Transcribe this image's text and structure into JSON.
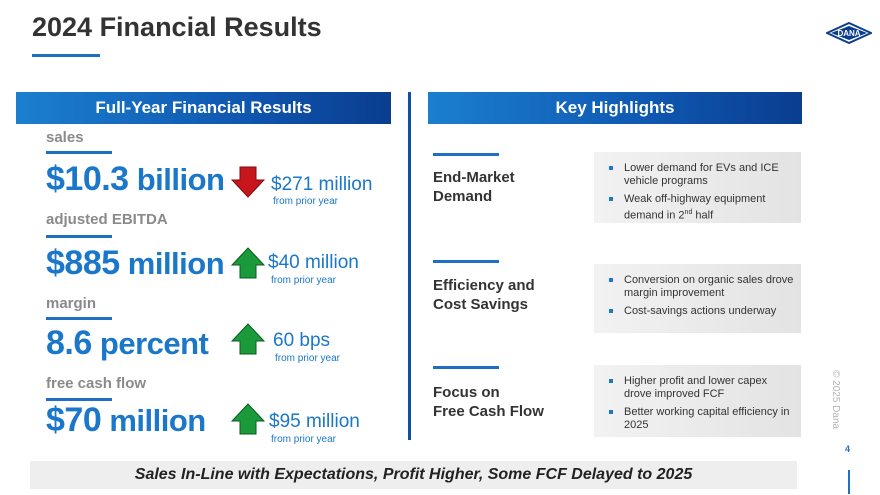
{
  "title": "2024 Financial Results",
  "logo_text": "DANA",
  "left_header": "Full-Year Financial Results",
  "right_header": "Key Highlights",
  "metrics": [
    {
      "label": "sales",
      "value_num": "$10.3",
      "value_unit": "billion",
      "change": "$271 million",
      "change_note": "from prior year",
      "direction": "down",
      "arrow_color": "#c8161d"
    },
    {
      "label": "adjusted EBITDA",
      "value_num": "$885",
      "value_unit": "million",
      "change": "$40 million",
      "change_note": "from prior year",
      "direction": "up",
      "arrow_color": "#1a9a3a"
    },
    {
      "label": "margin",
      "value_num": "8.6",
      "value_unit": "percent",
      "change": "60 bps",
      "change_note": "from prior year",
      "direction": "up",
      "arrow_color": "#1a9a3a"
    },
    {
      "label": "free cash flow",
      "value_num": "$70",
      "value_unit": "million",
      "change": "$95 million",
      "change_note": "from prior year",
      "direction": "up",
      "arrow_color": "#1a9a3a"
    }
  ],
  "highlights": [
    {
      "topic_line1": "End-Market",
      "topic_line2": "Demand",
      "bullets": [
        "Lower demand for EVs and ICE vehicle programs",
        "Weak off-highway equipment demand in 2nd half"
      ]
    },
    {
      "topic_line1": "Efficiency and",
      "topic_line2": "Cost Savings",
      "bullets": [
        "Conversion on organic sales drove margin improvement",
        "Cost-savings actions underway"
      ]
    },
    {
      "topic_line1": "Focus on",
      "topic_line2": "Free Cash Flow",
      "bullets": [
        "Higher profit and lower capex drove improved FCF",
        "Better working capital efficiency in 2025"
      ]
    }
  ],
  "bullet_2_suffix": "half",
  "bullet_2_prefix": "Weak off-highway equipment demand in 2",
  "bullet_2_sup": "nd",
  "footer": "Sales In-Line with Expectations, Profit Higher, Some FCF Delayed to 2025",
  "copyright": "© 2025 Dana",
  "page_number": "4",
  "colors": {
    "accent": "#1a77c9",
    "dark_blue": "#0f4fa8",
    "down": "#c8161d",
    "up": "#1a9a3a"
  }
}
